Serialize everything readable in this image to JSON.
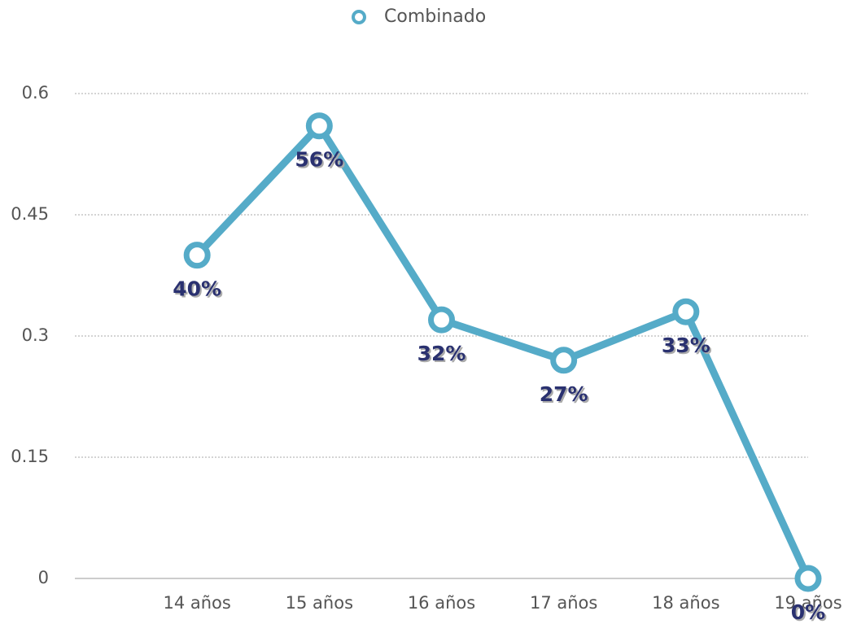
{
  "chart_data": {
    "type": "line",
    "categories": [
      "14 años",
      "15 años",
      "16 años",
      "17 años",
      "18 años",
      "19 años"
    ],
    "series": [
      {
        "name": "Combinado",
        "color": "#55abc8",
        "values": [
          0.4,
          0.56,
          0.32,
          0.27,
          0.33,
          0
        ],
        "value_labels": [
          "40%",
          "56%",
          "32%",
          "27%",
          "33%",
          "0%"
        ]
      }
    ],
    "ylim": [
      0,
      0.6
    ],
    "yticks": [
      0,
      0.15,
      0.3,
      0.45,
      0.6
    ],
    "grid": true,
    "legend": "top"
  }
}
